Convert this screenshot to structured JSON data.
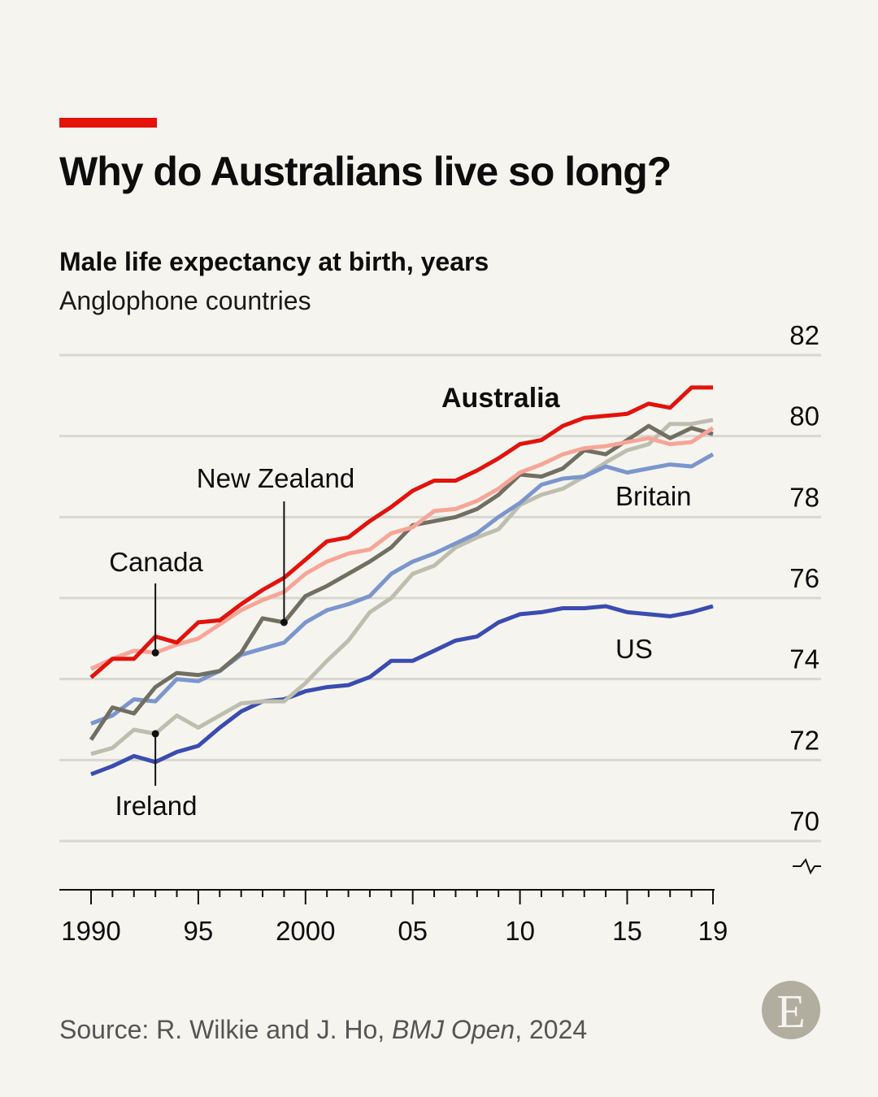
{
  "title": "Why do Australians live so long?",
  "subtitle": "Male life expectancy at birth, years",
  "subtitle2": "Anglophone countries",
  "source_prefix": "Source: R. Wilkie and J. Ho, ",
  "source_journal": "BMJ Open",
  "source_suffix": ", 2024",
  "logo": "E",
  "colors": {
    "accent": "#e3120b",
    "background": "#f5f4ef",
    "grid": "#d8d7d2",
    "logo": "#b1ad9f"
  },
  "chart_data": {
    "type": "line",
    "title": "Male life expectancy at birth, years",
    "subtitle": "Anglophone countries",
    "x": [
      1990,
      1991,
      1992,
      1993,
      1994,
      1995,
      1996,
      1997,
      1998,
      1999,
      2000,
      2001,
      2002,
      2003,
      2004,
      2005,
      2006,
      2007,
      2008,
      2009,
      2010,
      2011,
      2012,
      2013,
      2014,
      2015,
      2016,
      2017,
      2018,
      2019
    ],
    "xlim": [
      1990,
      2019
    ],
    "ylim": [
      70,
      82
    ],
    "y_axis_side": "right",
    "y_axis_break": true,
    "grid": true,
    "x_ticks": [
      1990,
      1995,
      2000,
      2005,
      2010,
      2015,
      2019
    ],
    "x_tick_labels": [
      "1990",
      "95",
      "2000",
      "05",
      "10",
      "15",
      "19"
    ],
    "y_ticks": [
      70,
      72,
      74,
      76,
      78,
      80,
      82
    ],
    "y_tick_labels": [
      "70",
      "72",
      "74",
      "76",
      "78",
      "80",
      "82"
    ],
    "series": [
      {
        "name": "US",
        "color": "#3a4cb0",
        "values": [
          71.65,
          71.85,
          72.1,
          71.95,
          72.2,
          72.35,
          72.8,
          73.2,
          73.45,
          73.5,
          73.7,
          73.8,
          73.85,
          74.05,
          74.45,
          74.45,
          74.7,
          74.95,
          75.05,
          75.4,
          75.6,
          75.65,
          75.75,
          75.75,
          75.8,
          75.65,
          75.6,
          75.55,
          75.65,
          75.8
        ]
      },
      {
        "name": "Ireland",
        "color": "#bebeae",
        "values": [
          72.15,
          72.3,
          72.75,
          72.65,
          73.1,
          72.8,
          73.1,
          73.4,
          73.45,
          73.45,
          73.9,
          74.45,
          74.95,
          75.65,
          76.0,
          76.6,
          76.8,
          77.25,
          77.5,
          77.7,
          78.3,
          78.55,
          78.7,
          79.0,
          79.35,
          79.65,
          79.8,
          80.3,
          80.3,
          80.4
        ]
      },
      {
        "name": "Britain",
        "color": "#7b96cc",
        "values": [
          72.9,
          73.1,
          73.5,
          73.45,
          74.0,
          73.95,
          74.2,
          74.6,
          74.75,
          74.9,
          75.4,
          75.7,
          75.85,
          76.05,
          76.6,
          76.9,
          77.1,
          77.35,
          77.6,
          78.0,
          78.35,
          78.8,
          78.95,
          79.0,
          79.25,
          79.1,
          79.2,
          79.3,
          79.25,
          79.55
        ]
      },
      {
        "name": "New Zealand",
        "color": "#706f61",
        "values": [
          72.5,
          73.3,
          73.15,
          73.8,
          74.15,
          74.1,
          74.2,
          74.65,
          75.5,
          75.4,
          76.05,
          76.3,
          76.6,
          76.9,
          77.25,
          77.8,
          77.9,
          78.0,
          78.2,
          78.55,
          79.05,
          79.0,
          79.2,
          79.65,
          79.55,
          79.9,
          80.25,
          79.95,
          80.2,
          80.05
        ]
      },
      {
        "name": "Canada",
        "color": "#f7a597",
        "values": [
          74.25,
          74.5,
          74.7,
          74.65,
          74.85,
          75.0,
          75.35,
          75.7,
          75.95,
          76.15,
          76.6,
          76.9,
          77.1,
          77.2,
          77.6,
          77.75,
          78.15,
          78.2,
          78.4,
          78.7,
          79.1,
          79.3,
          79.55,
          79.7,
          79.75,
          79.85,
          79.95,
          79.8,
          79.85,
          80.2
        ]
      },
      {
        "name": "Australia",
        "color": "#e3120b",
        "values": [
          74.04,
          74.5,
          74.5,
          75.05,
          74.9,
          75.4,
          75.45,
          75.85,
          76.2,
          76.5,
          76.95,
          77.4,
          77.5,
          77.9,
          78.25,
          78.65,
          78.9,
          78.9,
          79.15,
          79.45,
          79.8,
          79.9,
          80.25,
          80.45,
          80.5,
          80.55,
          80.8,
          80.7,
          81.2,
          81.2
        ]
      }
    ],
    "annotations": [
      {
        "label": "Canada",
        "series": "Canada",
        "year": 1993
      },
      {
        "label": "New Zealand",
        "series": "New Zealand",
        "year": 1999
      },
      {
        "label": "Ireland",
        "series": "Ireland",
        "year": 1993
      }
    ]
  }
}
